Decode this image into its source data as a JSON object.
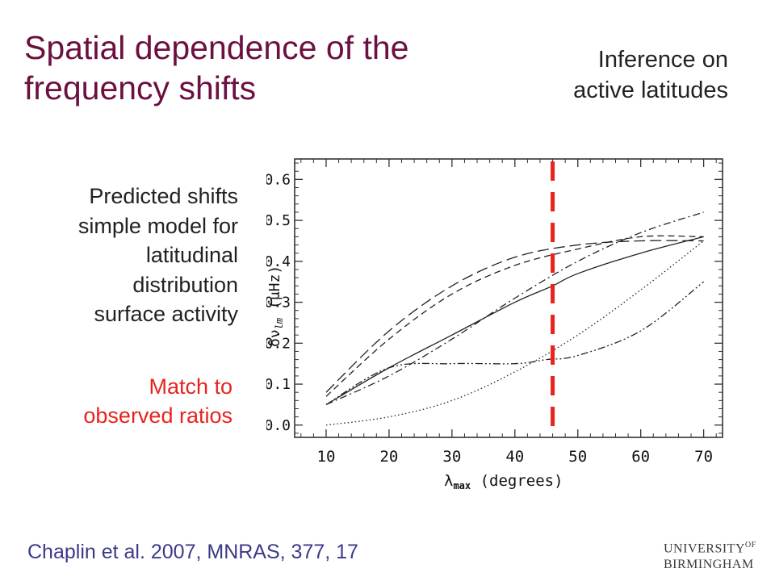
{
  "slide": {
    "title_line1": "Spatial dependence of the",
    "title_line2": "frequency shifts",
    "subtitle_line1": "Inference on",
    "subtitle_line2": "active latitudes",
    "description_lines": [
      "Predicted shifts",
      "simple model for",
      "latitudinal",
      "distribution",
      "surface activity"
    ],
    "highlight_line1": "Match to",
    "highlight_line2": "observed ratios",
    "citation": "Chaplin et al. 2007, MNRAS, 377, 17",
    "logo_line1": "UNIVERSITY",
    "logo_of": "OF",
    "logo_line2": "BIRMINGHAM",
    "colors": {
      "title": "#6b1040",
      "highlight": "#e8231d",
      "marker": "#e8231d"
    }
  },
  "chart_data": {
    "type": "line",
    "xlabel": "λmax (degrees)",
    "ylabel": "δνlm (μHz)",
    "x_ticks": [
      10,
      20,
      30,
      40,
      50,
      60,
      70
    ],
    "y_ticks": [
      0.0,
      0.1,
      0.2,
      0.3,
      0.4,
      0.5,
      0.6
    ],
    "xlim": [
      5,
      73
    ],
    "ylim": [
      -0.03,
      0.65
    ],
    "marker_x": 46,
    "series": [
      {
        "style": "solid",
        "x": [
          10,
          20,
          30,
          40,
          46,
          50,
          60,
          70
        ],
        "values": [
          0.05,
          0.14,
          0.22,
          0.3,
          0.34,
          0.37,
          0.42,
          0.46
        ]
      },
      {
        "style": "long-dash",
        "x": [
          10,
          20,
          30,
          40,
          50,
          60,
          70
        ],
        "values": [
          0.08,
          0.23,
          0.34,
          0.41,
          0.44,
          0.45,
          0.45
        ]
      },
      {
        "style": "short-dash",
        "x": [
          10,
          20,
          30,
          40,
          50,
          60,
          70
        ],
        "values": [
          0.07,
          0.21,
          0.32,
          0.39,
          0.43,
          0.46,
          0.46
        ]
      },
      {
        "style": "dash-dot",
        "x": [
          10,
          20,
          30,
          40,
          50,
          60,
          70
        ],
        "values": [
          0.05,
          0.12,
          0.21,
          0.31,
          0.4,
          0.47,
          0.52
        ]
      },
      {
        "style": "dash-dot-dot",
        "x": [
          10,
          20,
          30,
          40,
          45,
          50,
          60,
          70
        ],
        "values": [
          0.05,
          0.14,
          0.15,
          0.15,
          0.16,
          0.17,
          0.23,
          0.35
        ]
      },
      {
        "style": "dotted",
        "x": [
          10,
          20,
          30,
          40,
          50,
          60,
          70
        ],
        "values": [
          0.0,
          0.02,
          0.06,
          0.13,
          0.22,
          0.33,
          0.45
        ]
      }
    ]
  }
}
